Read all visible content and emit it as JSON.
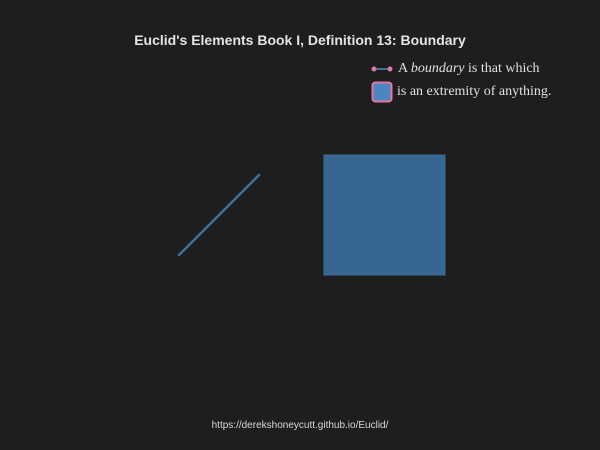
{
  "title": "Euclid's Elements Book I, Definition 13: Boundary",
  "legend": {
    "line1_before": "A ",
    "line1_italic": "boundary",
    "line1_after": " is that which",
    "line2": "is an extremity of anything."
  },
  "footer": "https://derekshoneycutt.github.io/Euclid/",
  "colors": {
    "background": "#1e1e1e",
    "shape_fill": "#376690",
    "line_stroke": "#3f6f9a",
    "highlight": "#e8749f",
    "legend_square_fill": "#4b86c0"
  }
}
